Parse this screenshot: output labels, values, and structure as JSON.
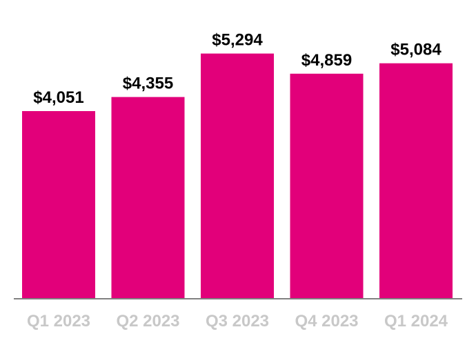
{
  "chart_data": {
    "type": "bar",
    "categories": [
      "Q1 2023",
      "Q2 2023",
      "Q3 2023",
      "Q4 2023",
      "Q1 2024"
    ],
    "values": [
      4051,
      4355,
      5294,
      4859,
      5084
    ],
    "data_labels": [
      "$4,051",
      "$4,355",
      "$5,294",
      "$4,859",
      "$5,084"
    ],
    "title": "",
    "xlabel": "",
    "ylabel": "",
    "ylim": [
      0,
      6450
    ],
    "grid": false,
    "legend": "none",
    "colors": {
      "bar": "#E2007A",
      "value_text": "#000000",
      "tick_text": "#C8C8C8",
      "axis": "#808080"
    }
  }
}
